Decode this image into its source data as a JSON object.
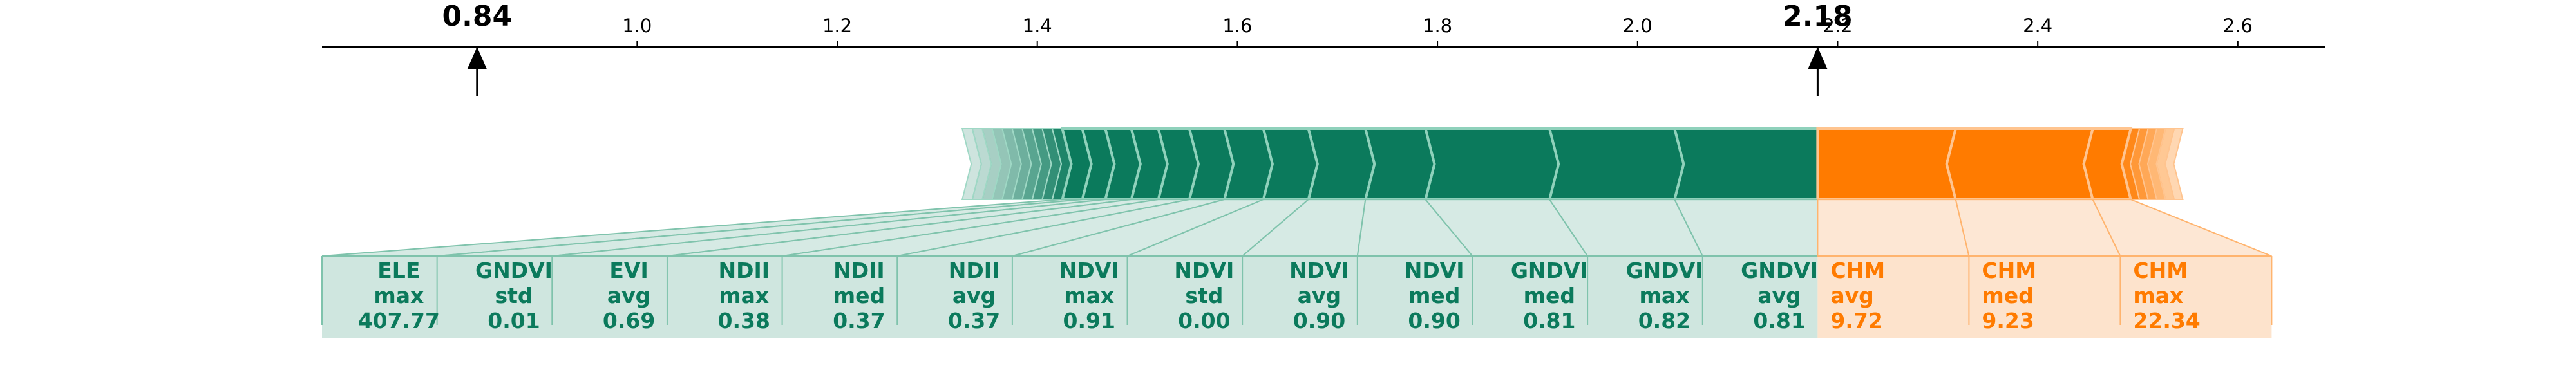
{
  "chart_data": {
    "type": "force",
    "title": "",
    "xlabel": "",
    "base_value": {
      "value": 0.84,
      "label": "0.84"
    },
    "output_value": {
      "value": 2.18,
      "label": "2.18"
    },
    "xlim": [
      0.685,
      2.687
    ],
    "ticks": [
      {
        "value": 1.0,
        "label": "1.0"
      },
      {
        "value": 1.2,
        "label": "1.2"
      },
      {
        "value": 1.4,
        "label": "1.4"
      },
      {
        "value": 1.6,
        "label": "1.6"
      },
      {
        "value": 1.8,
        "label": "1.8"
      },
      {
        "value": 2.0,
        "label": "2.0"
      },
      {
        "value": 2.2,
        "label": "2.2"
      },
      {
        "value": 2.4,
        "label": "2.4"
      },
      {
        "value": 2.6,
        "label": "2.6"
      }
    ],
    "positive_series": {
      "color": "#0b7a5c",
      "label_color": "#0b7a5c",
      "fill_color": "#cfe6df",
      "edge_color": "#7fc3ac",
      "features": [
        {
          "name": "GNDVI",
          "stat": "avg",
          "value": "0.81",
          "start": 2.037,
          "end": 2.18
        },
        {
          "name": "GNDVI",
          "stat": "max",
          "value": "0.82",
          "start": 1.912,
          "end": 2.037
        },
        {
          "name": "GNDVI",
          "stat": "med",
          "value": "0.81",
          "start": 1.788,
          "end": 1.912
        },
        {
          "name": "NDVI",
          "stat": "med",
          "value": "0.90",
          "start": 1.728,
          "end": 1.788
        },
        {
          "name": "NDVI",
          "stat": "avg",
          "value": "0.90",
          "start": 1.671,
          "end": 1.728
        },
        {
          "name": "NDVI",
          "stat": "std",
          "value": "0.00",
          "start": 1.626,
          "end": 1.671
        },
        {
          "name": "NDVI",
          "stat": "max",
          "value": "0.91",
          "start": 1.587,
          "end": 1.626
        },
        {
          "name": "NDII",
          "stat": "avg",
          "value": "0.37",
          "start": 1.552,
          "end": 1.587
        },
        {
          "name": "NDII",
          "stat": "med",
          "value": "0.37",
          "start": 1.521,
          "end": 1.552
        },
        {
          "name": "NDII",
          "stat": "max",
          "value": "0.38",
          "start": 1.494,
          "end": 1.521
        },
        {
          "name": "EVI",
          "stat": "avg",
          "value": "0.69",
          "start": 1.468,
          "end": 1.494
        },
        {
          "name": "GNDVI",
          "stat": "std",
          "value": "0.01",
          "start": 1.445,
          "end": 1.468
        },
        {
          "name": "ELE",
          "stat": "max",
          "value": "407.77",
          "start": 1.425,
          "end": 1.445
        }
      ],
      "minor_total_start": 1.325
    },
    "negative_series": {
      "color": "#ff7b00",
      "label_color": "#ff7b00",
      "fill_color": "#fde3cc",
      "edge_color": "#ffb46e",
      "features": [
        {
          "name": "CHM",
          "stat": "avg",
          "value": "9.72",
          "start": 2.18,
          "end": 2.318
        },
        {
          "name": "CHM",
          "stat": "med",
          "value": "9.23",
          "start": 2.318,
          "end": 2.455
        },
        {
          "name": "CHM",
          "stat": "max",
          "value": "22.34",
          "start": 2.455,
          "end": 2.493
        }
      ],
      "minor_total_end": 2.545
    }
  }
}
